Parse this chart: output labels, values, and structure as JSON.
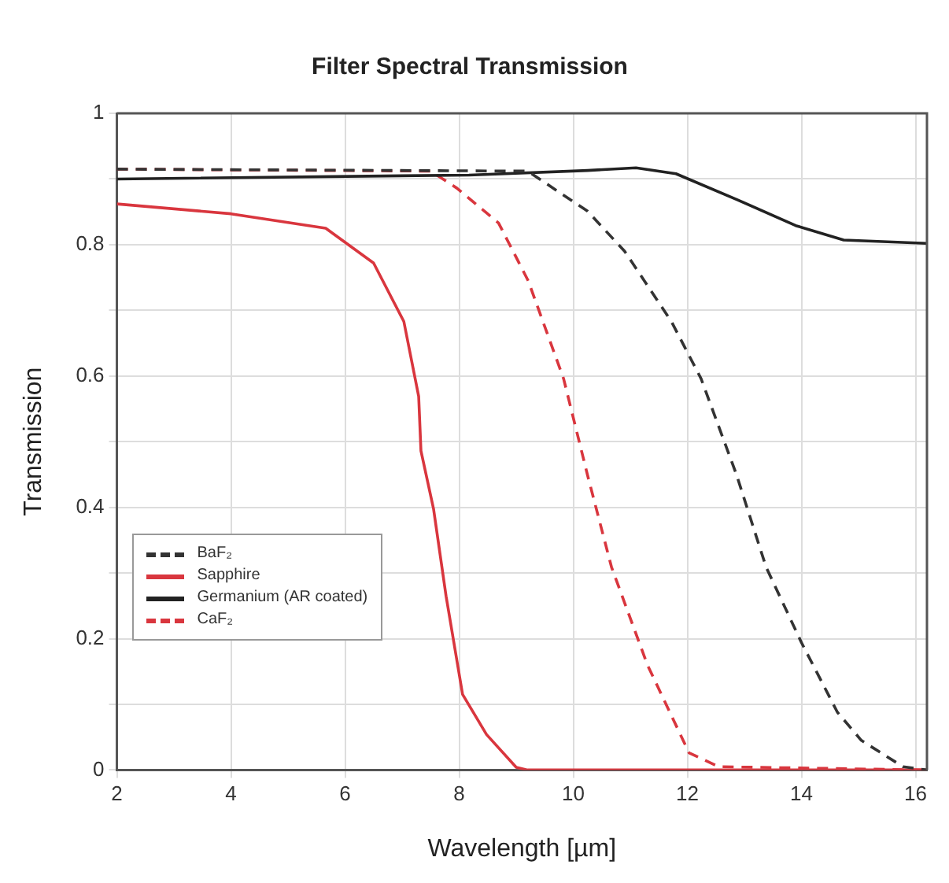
{
  "chart_data": {
    "type": "line",
    "title": "Filter Spectral Transmission",
    "xlabel": "Wavelength [µm]",
    "ylabel": "Transmission",
    "xlim": [
      2,
      16.2
    ],
    "xticks": [
      2,
      4,
      6,
      8,
      10,
      12,
      14,
      16
    ],
    "ylim": [
      0,
      1
    ],
    "yticks": [
      0,
      {
        "value": 0.1,
        "label": null
      },
      0.2,
      {
        "value": 0.3,
        "label": null
      },
      0.4,
      {
        "value": 0.5,
        "label": null
      },
      0.6,
      {
        "value": 0.7,
        "label": null
      },
      0.8,
      {
        "value": 0.9,
        "label": null
      },
      1
    ],
    "grid": true,
    "legend": "bottom left",
    "marker": "none",
    "series": [
      {
        "name": "BaF₂",
        "color": "#333333",
        "line_style": "dashed",
        "x": [
          2,
          9.2,
          10.25,
          10.9,
          11.72,
          12.24,
          12.86,
          13.38,
          14.0,
          14.63,
          15.05,
          15.78,
          16.2
        ],
        "values": [
          0.915,
          0.912,
          0.851,
          0.79,
          0.683,
          0.596,
          0.45,
          0.309,
          0.194,
          0.088,
          0.045,
          0.005,
          0
        ]
      },
      {
        "name": "Sapphire",
        "color": "#d9363e",
        "line_style": "solid",
        "x": [
          2,
          4,
          5.66,
          6.5,
          7.03,
          7.29,
          7.33,
          7.55,
          7.77,
          8.06,
          8.48,
          9.0,
          9.2,
          16.2
        ],
        "values": [
          0.862,
          0.847,
          0.825,
          0.772,
          0.683,
          0.569,
          0.486,
          0.398,
          0.265,
          0.115,
          0.054,
          0.004,
          0,
          0
        ]
      },
      {
        "name": "Germanium (AR coated)",
        "color": "#222222",
        "line_style": "solid",
        "x": [
          2,
          8.17,
          10.25,
          11.1,
          11.8,
          12.86,
          13.9,
          14.74,
          16.2
        ],
        "values": [
          0.9,
          0.906,
          0.913,
          0.917,
          0.908,
          0.869,
          0.829,
          0.807,
          0.802
        ]
      },
      {
        "name": "CaF₂",
        "color": "#d9363e",
        "line_style": "dashed",
        "x": [
          2,
          7.5,
          7.96,
          8.69,
          9.21,
          9.83,
          10.25,
          10.67,
          11.3,
          12.03,
          12.55,
          16.2
        ],
        "values": [
          0.915,
          0.912,
          0.886,
          0.833,
          0.745,
          0.596,
          0.449,
          0.309,
          0.16,
          0.026,
          0.005,
          0
        ]
      }
    ]
  }
}
